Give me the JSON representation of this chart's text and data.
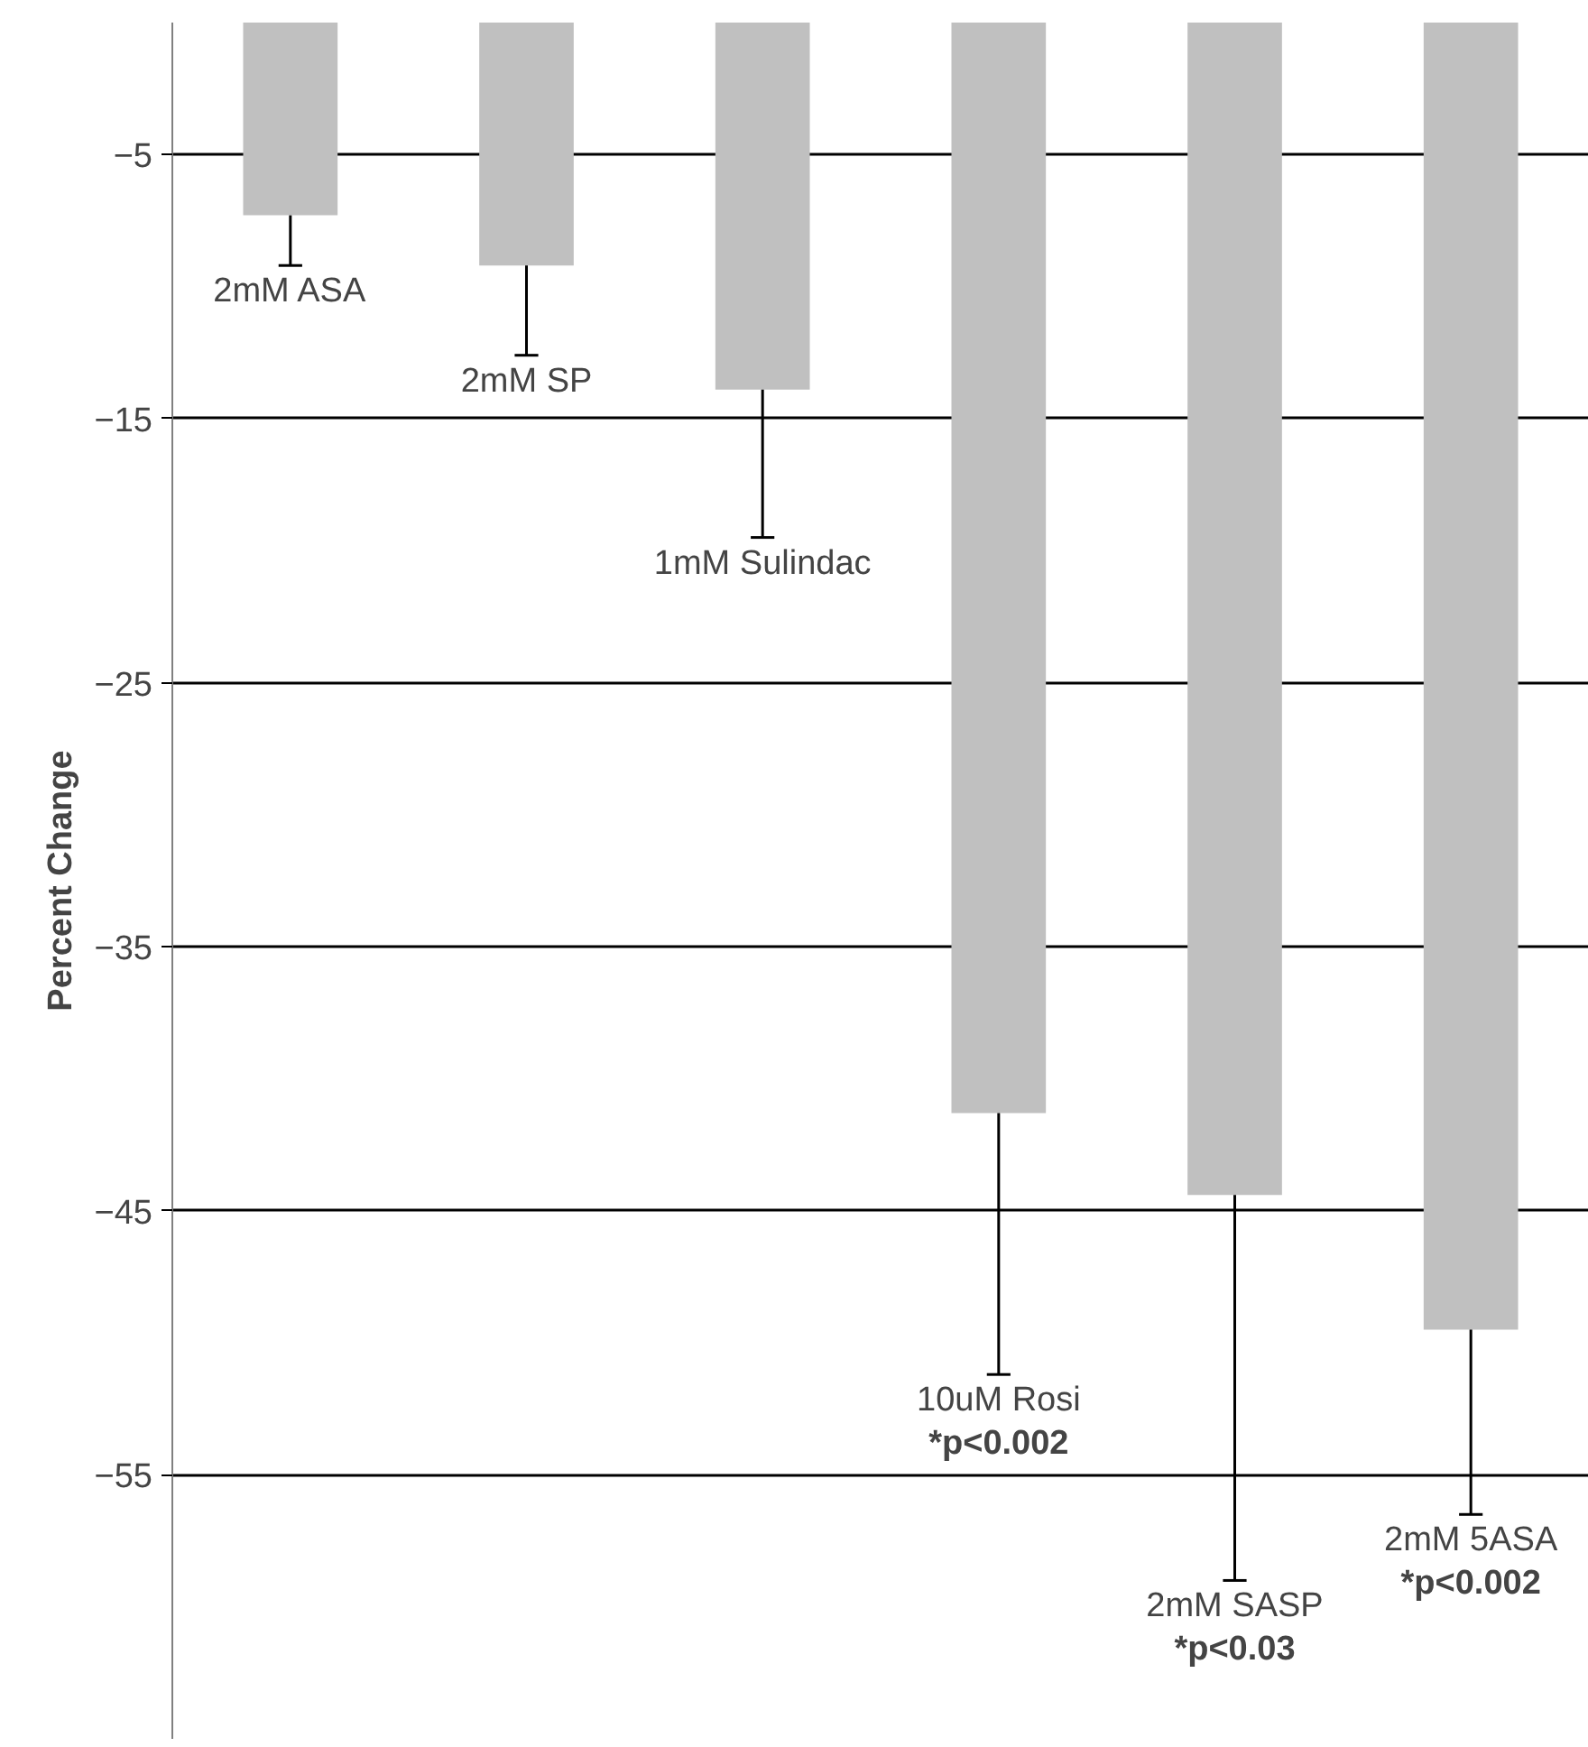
{
  "chart_data": {
    "type": "bar",
    "ylabel": "Percent Change",
    "categories": [
      "2mM ASA",
      "2mM SP",
      "1mM Sulindac",
      "10uM Rosi",
      "2mM SASP",
      "2mM 5ASA"
    ],
    "values": [
      -7.3,
      -9.2,
      -13.9,
      -41.3,
      -44.4,
      -49.5
    ],
    "errors": [
      [
        -9.2,
        -7.3
      ],
      [
        -12.6,
        -9.2
      ],
      [
        -19.5,
        -13.9
      ],
      [
        -51.2,
        -41.3
      ],
      [
        -59.0,
        -44.4
      ],
      [
        -56.5,
        -49.5
      ]
    ],
    "color": "#c0c0c0",
    "ylim": [
      -65,
      0
    ],
    "yticks": [
      -5,
      -15,
      -25,
      -35,
      -45,
      -55
    ],
    "grid": "y",
    "annotations": [
      "*p<0.002",
      "*p<0.03",
      "*p<0.002"
    ]
  }
}
